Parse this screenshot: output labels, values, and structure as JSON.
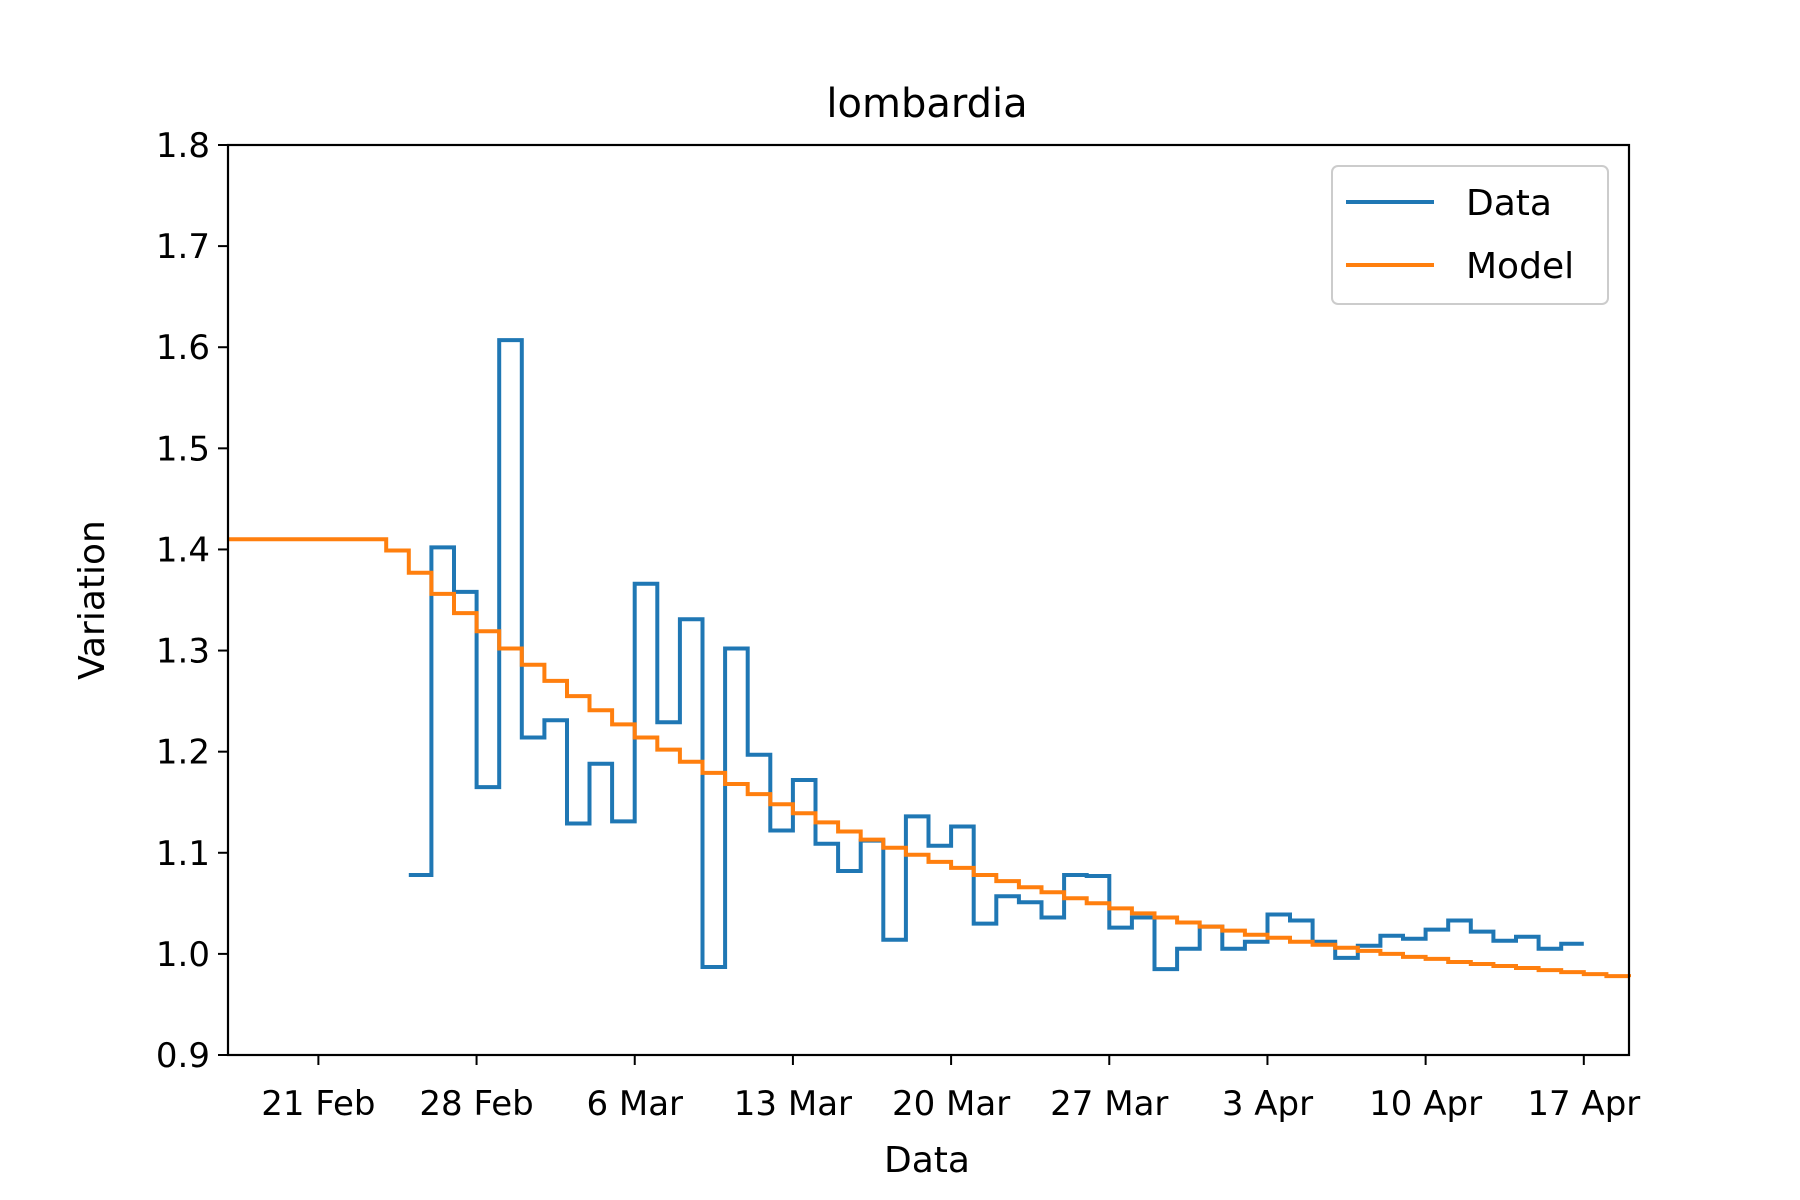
{
  "chart_data": {
    "type": "line",
    "step": "post",
    "title": "lombardia",
    "xlabel": "Data",
    "ylabel": "Variation",
    "xlim": [
      "2020-02-17",
      "2020-04-19"
    ],
    "ylim": [
      0.9,
      1.8
    ],
    "yticks": [
      0.9,
      1.0,
      1.1,
      1.2,
      1.3,
      1.4,
      1.5,
      1.6,
      1.7,
      1.8
    ],
    "xticks": [
      {
        "date": "2020-02-21",
        "label": "21 Feb"
      },
      {
        "date": "2020-02-28",
        "label": "28 Feb"
      },
      {
        "date": "2020-03-06",
        "label": "6 Mar"
      },
      {
        "date": "2020-03-13",
        "label": "13 Mar"
      },
      {
        "date": "2020-03-20",
        "label": "20 Mar"
      },
      {
        "date": "2020-03-27",
        "label": "27 Mar"
      },
      {
        "date": "2020-04-03",
        "label": "3 Apr"
      },
      {
        "date": "2020-04-10",
        "label": "10 Apr"
      },
      {
        "date": "2020-04-17",
        "label": "17 Apr"
      }
    ],
    "legend": {
      "position": "top-right"
    },
    "grid": false,
    "series": [
      {
        "name": "Data",
        "color": "#1f77b4",
        "x": [
          "2020-02-25",
          "2020-02-26",
          "2020-02-27",
          "2020-02-28",
          "2020-02-29",
          "2020-03-01",
          "2020-03-02",
          "2020-03-03",
          "2020-03-04",
          "2020-03-05",
          "2020-03-06",
          "2020-03-07",
          "2020-03-08",
          "2020-03-09",
          "2020-03-10",
          "2020-03-11",
          "2020-03-12",
          "2020-03-13",
          "2020-03-14",
          "2020-03-15",
          "2020-03-16",
          "2020-03-17",
          "2020-03-18",
          "2020-03-19",
          "2020-03-20",
          "2020-03-21",
          "2020-03-22",
          "2020-03-23",
          "2020-03-24",
          "2020-03-25",
          "2020-03-26",
          "2020-03-27",
          "2020-03-28",
          "2020-03-29",
          "2020-03-30",
          "2020-03-31",
          "2020-04-01",
          "2020-04-02",
          "2020-04-03",
          "2020-04-04",
          "2020-04-05",
          "2020-04-06",
          "2020-04-07",
          "2020-04-08",
          "2020-04-09",
          "2020-04-10",
          "2020-04-11",
          "2020-04-12",
          "2020-04-13",
          "2020-04-14",
          "2020-04-15",
          "2020-04-16",
          "2020-04-17"
        ],
        "y": [
          1.078,
          1.402,
          1.358,
          1.165,
          1.607,
          1.214,
          1.231,
          1.129,
          1.188,
          1.131,
          1.366,
          1.229,
          1.331,
          0.987,
          1.302,
          1.197,
          1.122,
          1.172,
          1.109,
          1.082,
          1.112,
          1.014,
          1.136,
          1.107,
          1.126,
          1.03,
          1.057,
          1.051,
          1.036,
          1.078,
          1.077,
          1.026,
          1.036,
          0.985,
          1.005,
          1.027,
          1.005,
          1.012,
          1.039,
          1.033,
          1.012,
          0.996,
          1.008,
          1.018,
          1.015,
          1.024,
          1.033,
          1.022,
          1.013,
          1.017,
          1.005,
          1.01,
          1.01
        ]
      },
      {
        "name": "Model",
        "color": "#ff7f0e",
        "x": [
          "2020-02-17",
          "2020-02-24",
          "2020-02-25",
          "2020-02-26",
          "2020-02-27",
          "2020-02-28",
          "2020-02-29",
          "2020-03-01",
          "2020-03-02",
          "2020-03-03",
          "2020-03-04",
          "2020-03-05",
          "2020-03-06",
          "2020-03-07",
          "2020-03-08",
          "2020-03-09",
          "2020-03-10",
          "2020-03-11",
          "2020-03-12",
          "2020-03-13",
          "2020-03-14",
          "2020-03-15",
          "2020-03-16",
          "2020-03-17",
          "2020-03-18",
          "2020-03-19",
          "2020-03-20",
          "2020-03-21",
          "2020-03-22",
          "2020-03-23",
          "2020-03-24",
          "2020-03-25",
          "2020-03-26",
          "2020-03-27",
          "2020-03-28",
          "2020-03-29",
          "2020-03-30",
          "2020-03-31",
          "2020-04-01",
          "2020-04-02",
          "2020-04-03",
          "2020-04-04",
          "2020-04-05",
          "2020-04-06",
          "2020-04-07",
          "2020-04-08",
          "2020-04-09",
          "2020-04-10",
          "2020-04-11",
          "2020-04-12",
          "2020-04-13",
          "2020-04-14",
          "2020-04-15",
          "2020-04-16",
          "2020-04-17",
          "2020-04-18",
          "2020-04-19"
        ],
        "y": [
          1.41,
          1.399,
          1.377,
          1.356,
          1.337,
          1.319,
          1.302,
          1.286,
          1.27,
          1.255,
          1.241,
          1.227,
          1.214,
          1.202,
          1.19,
          1.179,
          1.168,
          1.158,
          1.148,
          1.139,
          1.13,
          1.121,
          1.113,
          1.105,
          1.098,
          1.091,
          1.085,
          1.078,
          1.072,
          1.066,
          1.061,
          1.055,
          1.05,
          1.045,
          1.04,
          1.036,
          1.031,
          1.027,
          1.023,
          1.019,
          1.016,
          1.012,
          1.009,
          1.006,
          1.003,
          1.0,
          0.997,
          0.995,
          0.992,
          0.99,
          0.988,
          0.986,
          0.984,
          0.982,
          0.98,
          0.978,
          0.977
        ]
      }
    ]
  }
}
